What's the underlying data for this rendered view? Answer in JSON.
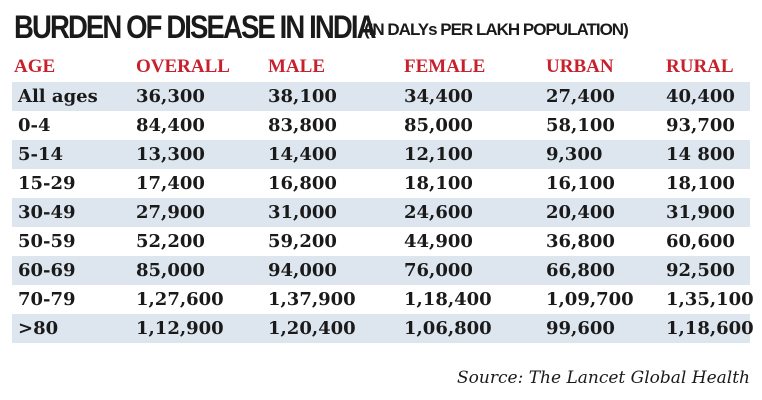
{
  "chart_data": {
    "type": "table",
    "title": "BURDEN OF DISEASE IN INDIA",
    "subtitle": "(IN DALYs PER LAKH POPULATION)",
    "columns": [
      "AGE",
      "OVERALL",
      "MALE",
      "FEMALE",
      "URBAN",
      "RURAL"
    ],
    "rows": [
      [
        "All ages",
        "36,300",
        "38,100",
        "34,400",
        "27,400",
        "40,400"
      ],
      [
        "0-4",
        "84,400",
        "83,800",
        "85,000",
        "58,100",
        "93,700"
      ],
      [
        "5-14",
        "13,300",
        "14,400",
        "12,100",
        "9,300",
        "14 800"
      ],
      [
        "15-29",
        "17,400",
        "16,800",
        "18,100",
        "16,100",
        "18,100"
      ],
      [
        "30-49",
        "27,900",
        "31,000",
        "24,600",
        "20,400",
        "31,900"
      ],
      [
        "50-59",
        "52,200",
        "59,200",
        "44,900",
        "36,800",
        "60,600"
      ],
      [
        "60-69",
        "85,000",
        "94,000",
        "76,000",
        "66,800",
        "92,500"
      ],
      [
        "70-79",
        "1,27,600",
        "1,37,900",
        "1,18,400",
        "1,09,700",
        "1,35,100"
      ],
      [
        ">80",
        "1,12,900",
        "1,20,400",
        "1,06,800",
        "99,600",
        "1,18,600"
      ]
    ],
    "source": "Source: The Lancet Global Health",
    "colors": {
      "header_text": "#c8202d",
      "row_shade": "#dde6ef",
      "body_text": "#1a1a1a"
    }
  }
}
